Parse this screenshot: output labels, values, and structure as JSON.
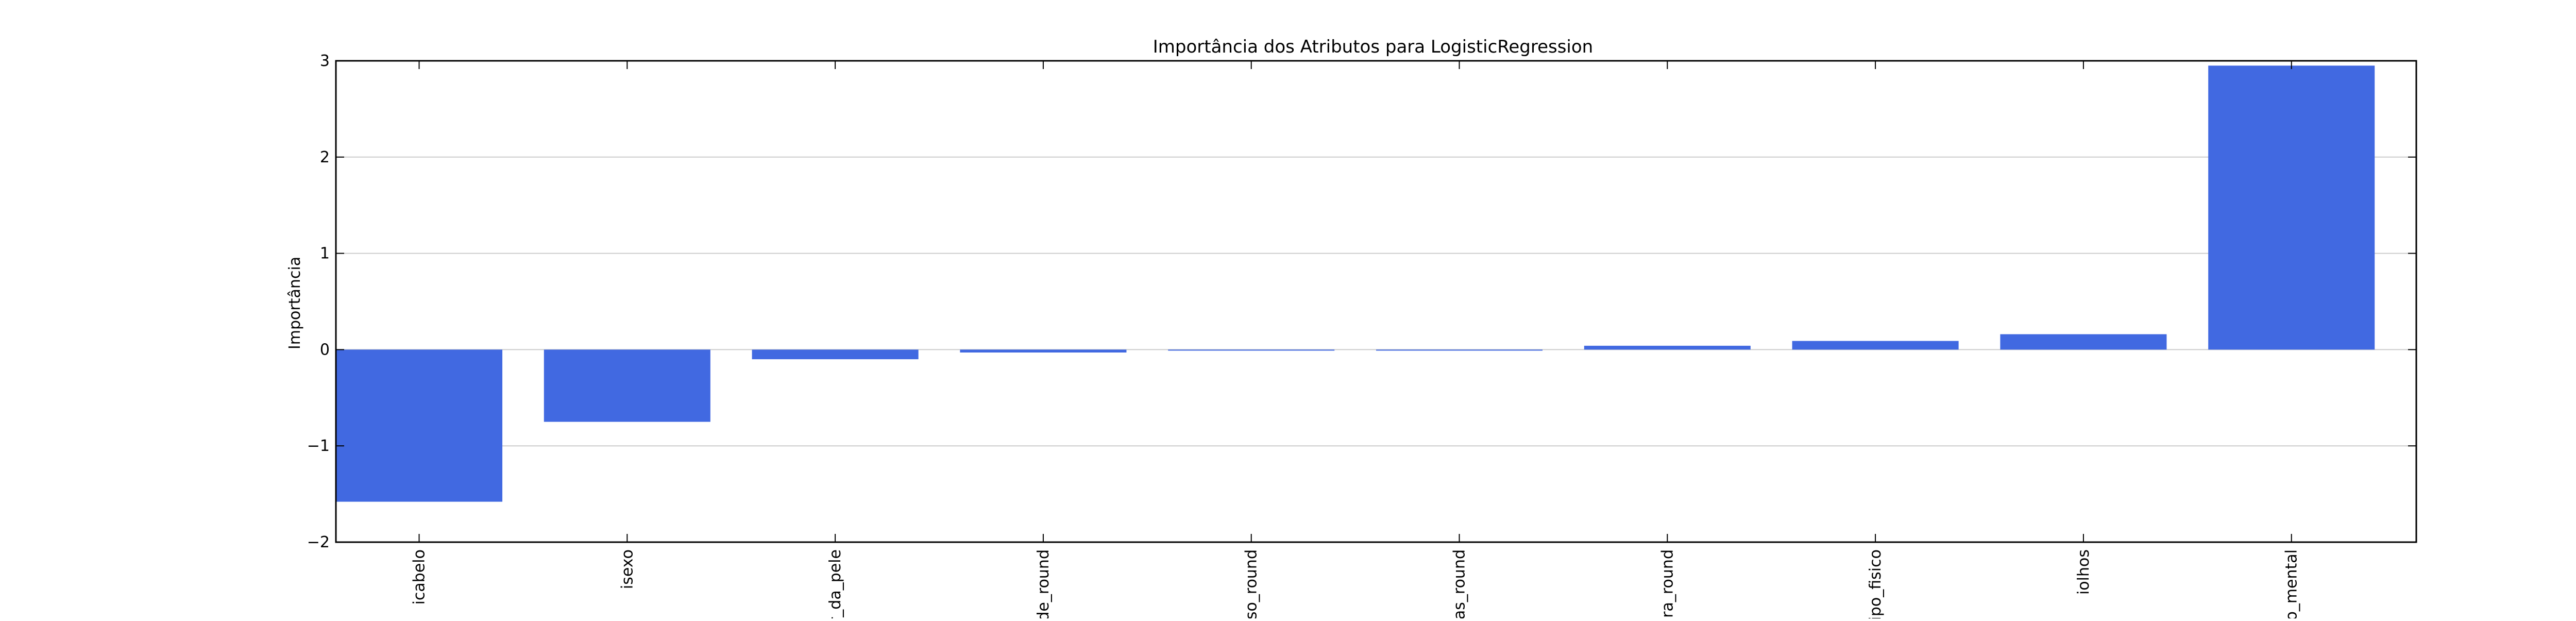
{
  "chart_data": {
    "type": "bar",
    "title": "Importância dos Atributos para LogisticRegression",
    "xlabel": "",
    "ylabel": "Importância",
    "ylim": [
      -2,
      3
    ],
    "yticks": [
      "3",
      "2",
      "1",
      "0",
      "−1",
      "−2"
    ],
    "ytick_values": [
      3,
      2,
      1,
      0,
      -1,
      -2
    ],
    "categories": [
      "icabelo",
      "isexo",
      "r_da_pele",
      "de_round",
      "eso_round",
      "ias_round",
      "ura_round",
      "tipo_fisico",
      "iolhos",
      "o_mental"
    ],
    "values": [
      -1.58,
      -0.75,
      -0.1,
      -0.03,
      -0.01,
      -0.01,
      0.04,
      0.09,
      0.16,
      2.95
    ],
    "grid": true,
    "bar_color": "#4169e1",
    "grid_color": "#cccccc"
  }
}
